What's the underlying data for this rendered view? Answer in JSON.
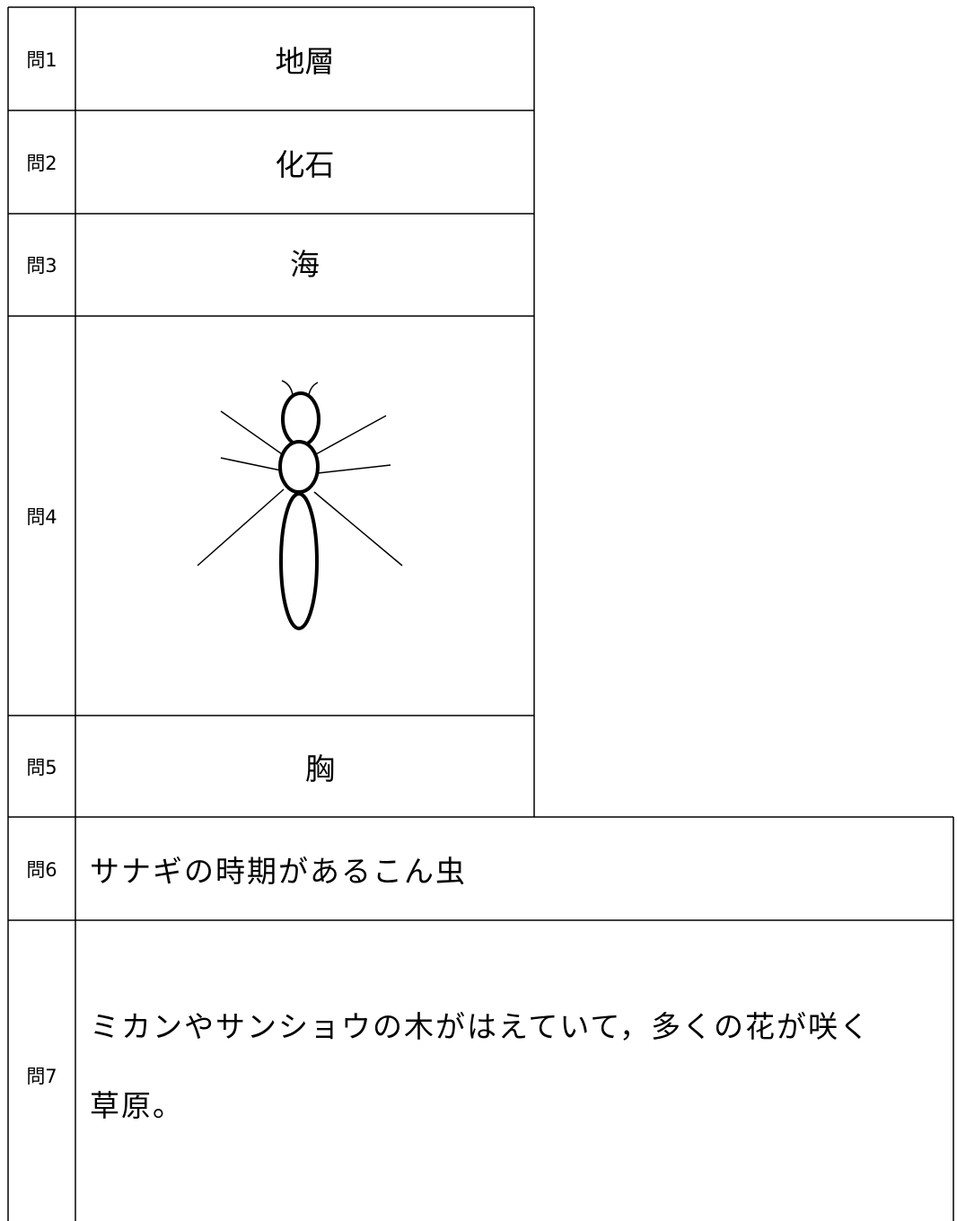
{
  "rows": [
    {
      "label": "問1",
      "answer": "地層"
    },
    {
      "label": "問2",
      "answer": "化石"
    },
    {
      "label": "問3",
      "answer": "海"
    },
    {
      "label": "問4"
    },
    {
      "label": "問5",
      "answer": "胸"
    },
    {
      "label": "問6",
      "answer": "サナギの時期があるこん虫"
    },
    {
      "label": "問7",
      "answer_lines": [
        "ミカンやサンショウの木がはえていて，多くの花が咲く",
        "草原。"
      ]
    }
  ]
}
